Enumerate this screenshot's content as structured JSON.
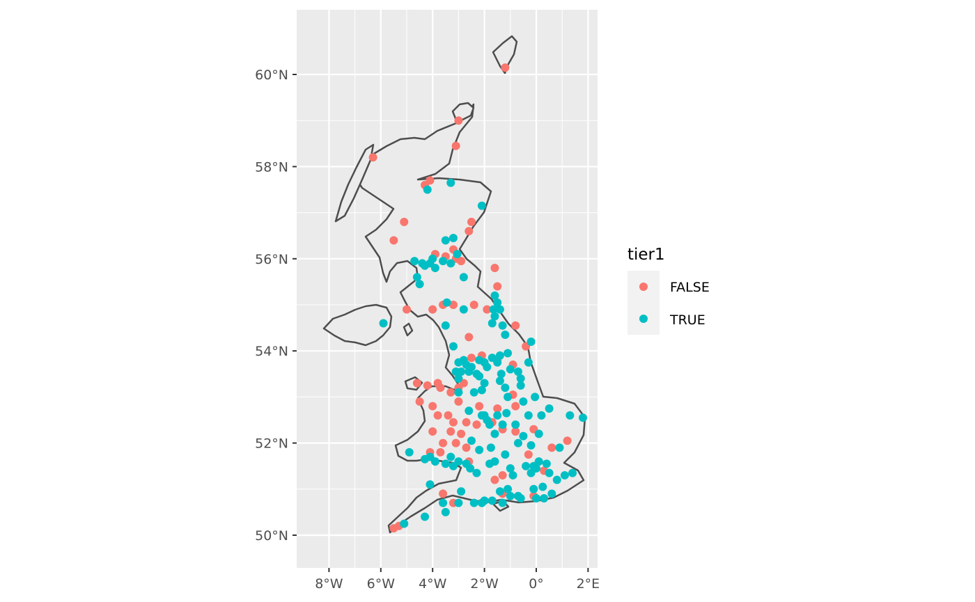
{
  "map": {
    "x_ticks": [
      "8°W",
      "6°W",
      "4°W",
      "2°W",
      "0°",
      "2°E"
    ],
    "y_ticks": [
      "50°N",
      "52°N",
      "54°N",
      "56°N",
      "58°N",
      "60°N"
    ],
    "legend": {
      "title": "tier1",
      "items": [
        {
          "label": "FALSE",
          "color": "#f8766d"
        },
        {
          "label": "TRUE",
          "color": "#00bfc4"
        }
      ]
    },
    "colors": {
      "panel": "#ebebeb",
      "grid": "#ffffff",
      "outline": "#4d4d4d",
      "legend_key_bg": "#f2f2f2"
    },
    "points_false": [
      [
        -1.2,
        60.15
      ],
      [
        -3.0,
        59.0
      ],
      [
        -3.1,
        58.45
      ],
      [
        -6.3,
        58.2
      ],
      [
        -4.3,
        57.6
      ],
      [
        -4.1,
        57.7
      ],
      [
        -2.5,
        56.8
      ],
      [
        -2.6,
        56.6
      ],
      [
        -5.1,
        56.8
      ],
      [
        -5.5,
        56.4
      ],
      [
        -3.9,
        56.1
      ],
      [
        -3.2,
        56.2
      ],
      [
        -3.5,
        56.05
      ],
      [
        -3.1,
        56.0
      ],
      [
        -2.9,
        55.95
      ],
      [
        -1.6,
        55.8
      ],
      [
        -2.4,
        55.0
      ],
      [
        -1.9,
        54.9
      ],
      [
        -1.5,
        55.4
      ],
      [
        -3.6,
        55.0
      ],
      [
        -4.0,
        54.9
      ],
      [
        -3.2,
        55.0
      ],
      [
        -5.0,
        54.9
      ],
      [
        -2.6,
        54.3
      ],
      [
        -0.8,
        54.55
      ],
      [
        -0.4,
        54.1
      ],
      [
        -2.1,
        53.9
      ],
      [
        -2.5,
        53.85
      ],
      [
        -1.5,
        53.8
      ],
      [
        -0.9,
        53.7
      ],
      [
        -4.6,
        53.3
      ],
      [
        -4.2,
        53.25
      ],
      [
        -3.8,
        53.3
      ],
      [
        -3.0,
        53.2
      ],
      [
        -3.3,
        53.1
      ],
      [
        -3.7,
        53.2
      ],
      [
        -4.5,
        52.9
      ],
      [
        -4.0,
        52.8
      ],
      [
        -3.8,
        52.6
      ],
      [
        -3.4,
        52.6
      ],
      [
        -3.2,
        52.45
      ],
      [
        -2.7,
        52.45
      ],
      [
        -2.2,
        52.8
      ],
      [
        -1.5,
        52.75
      ],
      [
        -0.9,
        53.05
      ],
      [
        -0.8,
        52.8
      ],
      [
        -3.3,
        52.25
      ],
      [
        -4.0,
        52.25
      ],
      [
        -3.6,
        52.0
      ],
      [
        -3.1,
        52.0
      ],
      [
        -2.9,
        52.2
      ],
      [
        -2.3,
        52.4
      ],
      [
        -1.7,
        52.45
      ],
      [
        -1.3,
        52.3
      ],
      [
        -0.8,
        52.25
      ],
      [
        -0.1,
        52.3
      ],
      [
        0.6,
        51.9
      ],
      [
        1.2,
        52.05
      ],
      [
        -0.3,
        51.75
      ],
      [
        0.3,
        51.4
      ],
      [
        -1.3,
        51.3
      ],
      [
        -1.6,
        51.2
      ],
      [
        -3.6,
        50.9
      ],
      [
        -3.2,
        50.7
      ],
      [
        -5.5,
        50.15
      ],
      [
        -5.3,
        50.2
      ],
      [
        -1.3,
        50.9
      ],
      [
        -0.1,
        50.85
      ],
      [
        -2.6,
        51.6
      ],
      [
        -3.7,
        51.8
      ],
      [
        -4.1,
        51.8
      ],
      [
        -2.7,
        51.9
      ],
      [
        -2.8,
        53.3
      ],
      [
        -3.0,
        52.9
      ]
    ],
    "points_true": [
      [
        -3.3,
        57.65
      ],
      [
        -4.2,
        57.5
      ],
      [
        -2.1,
        57.15
      ],
      [
        -3.2,
        56.45
      ],
      [
        -3.5,
        56.4
      ],
      [
        -3.05,
        56.1
      ],
      [
        -3.3,
        55.9
      ],
      [
        -4.3,
        55.85
      ],
      [
        -4.4,
        55.9
      ],
      [
        -4.7,
        55.95
      ],
      [
        -4.1,
        55.9
      ],
      [
        -3.9,
        55.8
      ],
      [
        -4.0,
        56.0
      ],
      [
        -3.6,
        55.95
      ],
      [
        -2.8,
        55.6
      ],
      [
        -4.6,
        55.6
      ],
      [
        -4.5,
        55.45
      ],
      [
        -3.45,
        55.05
      ],
      [
        -1.6,
        55.2
      ],
      [
        -1.5,
        55.05
      ],
      [
        -1.65,
        54.9
      ],
      [
        -1.4,
        54.9
      ],
      [
        -1.6,
        54.75
      ],
      [
        -1.7,
        54.6
      ],
      [
        -1.3,
        54.55
      ],
      [
        -2.8,
        54.9
      ],
      [
        -3.5,
        54.55
      ],
      [
        -1.2,
        54.35
      ],
      [
        -0.2,
        54.2
      ],
      [
        -5.9,
        54.6
      ],
      [
        -3.2,
        54.1
      ],
      [
        -2.8,
        53.8
      ],
      [
        -1.1,
        53.95
      ],
      [
        -1.5,
        53.75
      ],
      [
        -1.9,
        53.65
      ],
      [
        -1.35,
        53.5
      ],
      [
        -0.7,
        53.55
      ],
      [
        -0.3,
        53.75
      ],
      [
        -2.3,
        53.5
      ],
      [
        -2.6,
        53.55
      ],
      [
        -2.2,
        53.45
      ],
      [
        -3.0,
        53.4
      ],
      [
        -2.9,
        53.55
      ],
      [
        -3.0,
        53.1
      ],
      [
        -2.4,
        53.1
      ],
      [
        -1.4,
        53.35
      ],
      [
        -1.2,
        53.2
      ],
      [
        -1.1,
        53.0
      ],
      [
        -0.6,
        53.25
      ],
      [
        -0.05,
        53.0
      ],
      [
        -0.5,
        52.9
      ],
      [
        -1.15,
        52.65
      ],
      [
        -1.5,
        52.6
      ],
      [
        -1.9,
        52.5
      ],
      [
        -2.1,
        52.6
      ],
      [
        -2.6,
        52.7
      ],
      [
        -1.8,
        52.4
      ],
      [
        -1.3,
        52.4
      ],
      [
        -0.8,
        52.4
      ],
      [
        -0.3,
        52.6
      ],
      [
        0.2,
        52.6
      ],
      [
        0.5,
        52.75
      ],
      [
        1.3,
        52.6
      ],
      [
        1.8,
        52.55
      ],
      [
        -0.5,
        52.15
      ],
      [
        0.1,
        52.2
      ],
      [
        -0.7,
        52.0
      ],
      [
        -0.2,
        51.95
      ],
      [
        -1.2,
        51.75
      ],
      [
        -1.75,
        51.9
      ],
      [
        -2.2,
        51.85
      ],
      [
        -2.5,
        52.05
      ],
      [
        -2.7,
        51.55
      ],
      [
        -2.55,
        51.45
      ],
      [
        -2.3,
        51.35
      ],
      [
        -1.8,
        51.55
      ],
      [
        -1.0,
        51.45
      ],
      [
        -0.4,
        51.5
      ],
      [
        -0.1,
        51.5
      ],
      [
        0.0,
        51.45
      ],
      [
        -0.2,
        51.35
      ],
      [
        0.1,
        51.6
      ],
      [
        0.4,
        51.55
      ],
      [
        0.5,
        51.35
      ],
      [
        0.8,
        51.2
      ],
      [
        1.1,
        51.3
      ],
      [
        1.4,
        51.35
      ],
      [
        0.9,
        51.9
      ],
      [
        -3.2,
        51.5
      ],
      [
        -3.0,
        51.6
      ],
      [
        -3.5,
        51.55
      ],
      [
        -3.9,
        51.6
      ],
      [
        -4.3,
        51.65
      ],
      [
        -4.1,
        51.7
      ],
      [
        -3.3,
        51.7
      ],
      [
        -4.9,
        51.8
      ],
      [
        -4.3,
        50.4
      ],
      [
        -3.5,
        50.5
      ],
      [
        -3.6,
        50.7
      ],
      [
        -4.1,
        51.1
      ],
      [
        -5.1,
        50.25
      ],
      [
        -2.0,
        50.75
      ],
      [
        -1.7,
        50.75
      ],
      [
        -2.1,
        50.7
      ],
      [
        -1.0,
        50.85
      ],
      [
        -0.7,
        50.85
      ],
      [
        -1.4,
        50.95
      ],
      [
        -1.1,
        51.0
      ],
      [
        -0.1,
        51.0
      ],
      [
        0.0,
        50.8
      ],
      [
        0.3,
        50.8
      ],
      [
        0.6,
        50.9
      ],
      [
        -2.4,
        50.7
      ],
      [
        -2.9,
        50.95
      ],
      [
        -3.0,
        50.7
      ],
      [
        -1.3,
        50.7
      ],
      [
        -0.6,
        50.8
      ],
      [
        0.25,
        51.05
      ],
      [
        -0.9,
        51.3
      ],
      [
        -1.6,
        51.6
      ],
      [
        -1.7,
        53.85
      ],
      [
        -2.0,
        53.75
      ],
      [
        -2.2,
        53.8
      ],
      [
        -2.5,
        53.65
      ],
      [
        -2.7,
        53.7
      ],
      [
        -3.0,
        53.75
      ],
      [
        -3.1,
        53.55
      ],
      [
        -1.0,
        53.6
      ],
      [
        -1.4,
        53.9
      ],
      [
        -0.6,
        53.4
      ],
      [
        -2.0,
        53.3
      ],
      [
        -2.1,
        53.15
      ],
      [
        -2.0,
        52.6
      ],
      [
        -1.6,
        52.2
      ]
    ]
  }
}
